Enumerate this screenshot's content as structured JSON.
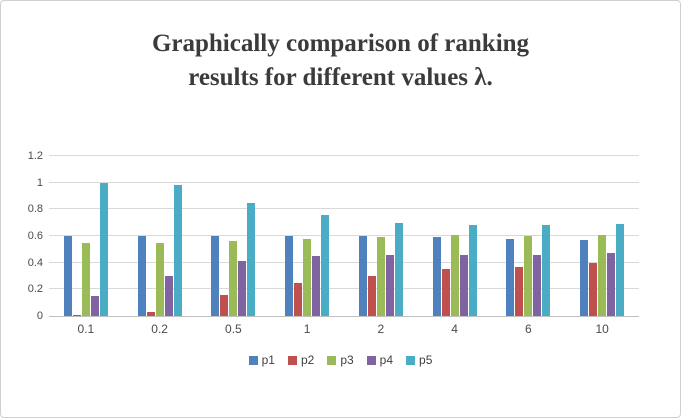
{
  "chart_data": {
    "type": "bar",
    "title": "Graphically comparison of ranking results for different values λ.",
    "categories": [
      "0.1",
      "0.2",
      "0.5",
      "1",
      "2",
      "4",
      "6",
      "10"
    ],
    "series": [
      {
        "name": "p1",
        "color": "#4F81BD",
        "values": [
          0.6,
          0.6,
          0.6,
          0.6,
          0.6,
          0.59,
          0.58,
          0.57
        ]
      },
      {
        "name": "p2",
        "color": "#C0504D",
        "values": [
          0.01,
          0.03,
          0.16,
          0.25,
          0.3,
          0.35,
          0.37,
          0.4
        ]
      },
      {
        "name": "p3",
        "color": "#9BBB59",
        "values": [
          0.55,
          0.55,
          0.56,
          0.58,
          0.59,
          0.61,
          0.6,
          0.61
        ]
      },
      {
        "name": "p4",
        "color": "#8064A2",
        "values": [
          0.15,
          0.3,
          0.41,
          0.45,
          0.46,
          0.46,
          0.46,
          0.47
        ]
      },
      {
        "name": "p5",
        "color": "#4BACC6",
        "values": [
          1.0,
          0.98,
          0.85,
          0.76,
          0.7,
          0.68,
          0.68,
          0.69
        ]
      }
    ],
    "ylim": [
      0,
      1.2
    ],
    "yticks": [
      "0",
      "0.2",
      "0.4",
      "0.6",
      "0.8",
      "1",
      "1.2"
    ],
    "grid": true,
    "legend_position": "bottom",
    "axis_line_color": "#bfbfbf",
    "gridline_color": "#d9d9d9"
  }
}
